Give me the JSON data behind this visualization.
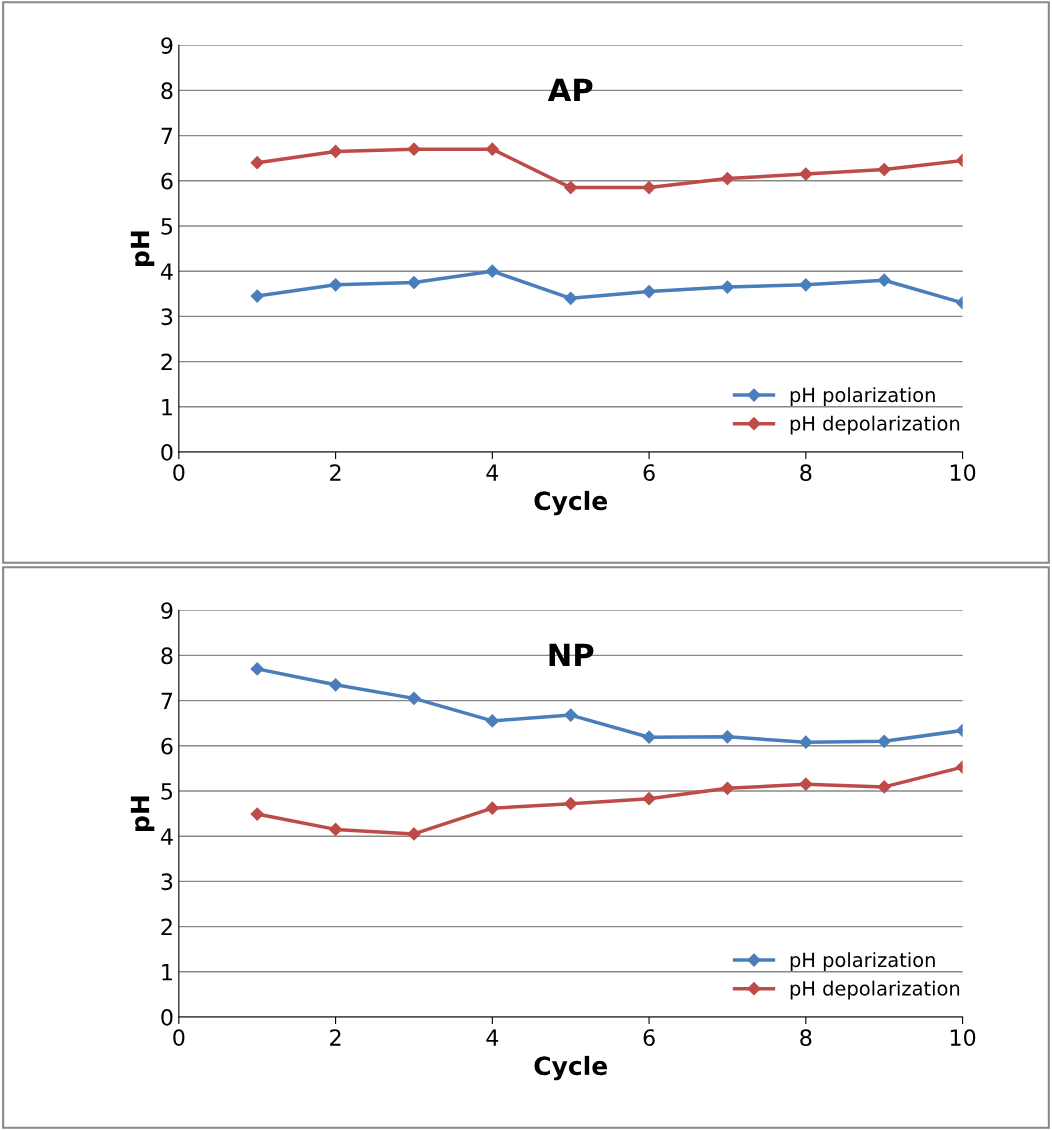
{
  "chart_data": [
    {
      "type": "line",
      "title": "AP",
      "xlabel": "Cycle",
      "ylabel": "pH",
      "x": [
        1,
        2,
        3,
        4,
        5,
        6,
        7,
        8,
        9,
        10
      ],
      "xlim": [
        0,
        10
      ],
      "xticks": [
        0,
        2,
        4,
        6,
        8,
        10
      ],
      "ylim": [
        0,
        9
      ],
      "yticks": [
        0,
        1,
        2,
        3,
        4,
        5,
        6,
        7,
        8,
        9
      ],
      "grid": "y",
      "legend": "bottom right",
      "marker": "diamond",
      "line_style": "solid",
      "series": [
        {
          "name": "pH polarization",
          "color": "#4a7ebb",
          "values": [
            3.45,
            3.7,
            3.75,
            4.0,
            3.4,
            3.55,
            3.65,
            3.7,
            3.8,
            3.3
          ]
        },
        {
          "name": "pH depolarization",
          "color": "#be4b48",
          "values": [
            6.4,
            6.65,
            6.7,
            6.7,
            5.85,
            5.85,
            6.05,
            6.15,
            6.25,
            6.45
          ]
        }
      ]
    },
    {
      "type": "line",
      "title": "NP",
      "xlabel": "Cycle",
      "ylabel": "pH",
      "x": [
        1,
        2,
        3,
        4,
        5,
        6,
        7,
        8,
        9,
        10
      ],
      "xlim": [
        0,
        10
      ],
      "xticks": [
        0,
        2,
        4,
        6,
        8,
        10
      ],
      "ylim": [
        0,
        9
      ],
      "yticks": [
        0,
        1,
        2,
        3,
        4,
        5,
        6,
        7,
        8,
        9
      ],
      "grid": "y",
      "legend": "bottom right",
      "marker": "diamond",
      "line_style": "solid",
      "series": [
        {
          "name": "pH polarization",
          "color": "#4a7ebb",
          "values": [
            7.7,
            7.35,
            7.05,
            6.55,
            6.68,
            6.19,
            6.2,
            6.08,
            6.1,
            6.34
          ]
        },
        {
          "name": "pH depolarization",
          "color": "#be4b48",
          "values": [
            4.49,
            4.15,
            4.05,
            4.62,
            4.72,
            4.83,
            5.06,
            5.15,
            5.09,
            5.53
          ]
        }
      ]
    }
  ]
}
